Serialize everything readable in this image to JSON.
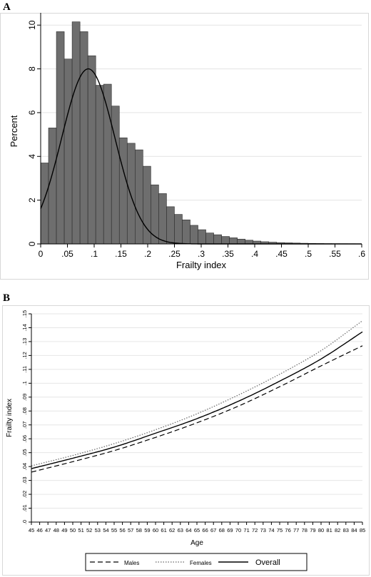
{
  "panels": {
    "a_label": "A",
    "b_label": "B"
  },
  "chart_data": [
    {
      "type": "bar",
      "title": "",
      "xlabel": "Frailty index",
      "ylabel": "Percent",
      "xlim": [
        0,
        0.6
      ],
      "ylim": [
        0,
        10.3
      ],
      "xticks": [
        0,
        0.05,
        0.1,
        0.15,
        0.2,
        0.25,
        0.3,
        0.35,
        0.4,
        0.45,
        0.5,
        0.55,
        0.6
      ],
      "xtick_labels": [
        "0",
        ".05",
        ".1",
        ".15",
        ".2",
        ".25",
        ".3",
        ".35",
        ".4",
        ".45",
        ".5",
        ".55",
        ".6"
      ],
      "yticks": [
        0,
        2,
        4,
        6,
        8,
        10
      ],
      "ytick_labels": [
        "0",
        "2",
        "4",
        "6",
        "8",
        "10"
      ],
      "bin_width": 0.0147,
      "bin_start": 0,
      "values": [
        3.7,
        5.3,
        9.7,
        8.45,
        10.15,
        9.7,
        8.6,
        7.25,
        7.3,
        6.3,
        4.85,
        4.6,
        4.3,
        3.55,
        2.7,
        2.3,
        1.7,
        1.35,
        1.1,
        0.85,
        0.65,
        0.5,
        0.42,
        0.34,
        0.28,
        0.22,
        0.17,
        0.13,
        0.1,
        0.08,
        0.06,
        0.05,
        0.04,
        0.03,
        0.025,
        0.02,
        0.015,
        0.012,
        0.01,
        0.008
      ],
      "normal_curve": {
        "mean": 0.089,
        "sd": 0.0497,
        "peak": 8.0
      },
      "grid": true,
      "bar_color": "#6e6e6e"
    },
    {
      "type": "line",
      "title": "",
      "xlabel": "Age",
      "ylabel": "Frailty index",
      "xlim": [
        45,
        85
      ],
      "ylim": [
        0,
        0.15
      ],
      "x": [
        45,
        50,
        55,
        60,
        65,
        70,
        75,
        80,
        85
      ],
      "yticks": [
        0,
        0.01,
        0.02,
        0.03,
        0.04,
        0.05,
        0.06,
        0.07,
        0.08,
        0.09,
        0.1,
        0.11,
        0.12,
        0.13,
        0.14,
        0.15
      ],
      "ytick_labels": [
        ".0",
        ".01",
        ".02",
        ".03",
        ".04",
        ".05",
        ".06",
        ".07",
        ".08",
        ".09",
        ".1",
        ".11",
        ".12",
        ".13",
        ".14",
        ".15"
      ],
      "series": [
        {
          "name": "Males",
          "style": "dashed",
          "values": [
            0.036,
            0.0435,
            0.0515,
            0.061,
            0.0715,
            0.0835,
            0.0975,
            0.1125,
            0.127
          ]
        },
        {
          "name": "Females",
          "style": "dotted",
          "values": [
            0.0405,
            0.048,
            0.0565,
            0.0665,
            0.078,
            0.0915,
            0.1065,
            0.1235,
            0.145
          ]
        },
        {
          "name": "Overall",
          "style": "solid",
          "values": [
            0.0385,
            0.046,
            0.054,
            0.064,
            0.0745,
            0.087,
            0.1015,
            0.1175,
            0.137
          ]
        }
      ],
      "legend_placement": "bottom",
      "grid": true
    }
  ]
}
